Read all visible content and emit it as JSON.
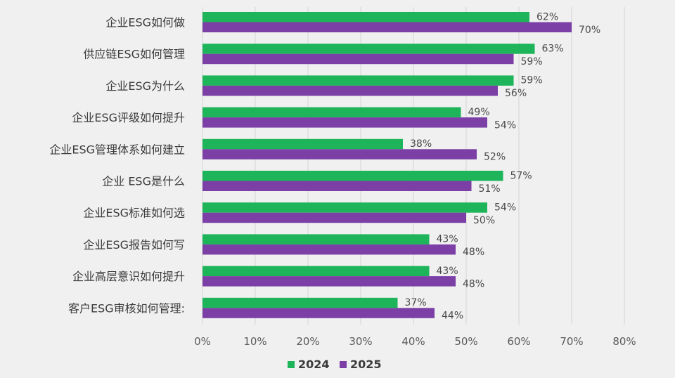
{
  "chart_data": {
    "type": "bar",
    "orientation": "horizontal",
    "categories": [
      "企业ESG如何做",
      "供应链ESG如何管理",
      "企业ESG为什么",
      "企业ESG评级如何提升",
      "企业ESG管理体系如何建立",
      "企业 ESG是什么",
      "企业ESG标准如何选",
      "企业ESG报告如何写",
      "企业高层意识如何提升",
      "客户ESG审核如何管理:"
    ],
    "series": [
      {
        "name": "2024",
        "color": "#1db45a",
        "values": [
          62,
          63,
          59,
          49,
          38,
          57,
          54,
          43,
          43,
          37
        ],
        "labels": [
          "62%",
          "63%",
          "59%",
          "49%",
          "38%",
          "57%",
          "54%",
          "43%",
          "43%",
          "37%"
        ]
      },
      {
        "name": "2025",
        "color": "#7b3fa6",
        "values": [
          70,
          59,
          56,
          54,
          52,
          51,
          50,
          48,
          48,
          44
        ],
        "labels": [
          "70%",
          "59%",
          "56%",
          "54%",
          "52%",
          "51%",
          "50%",
          "48%",
          "48%",
          "44%"
        ]
      }
    ],
    "xlim": [
      0,
      80
    ],
    "xticks": [
      0,
      10,
      20,
      30,
      40,
      50,
      60,
      70,
      80
    ],
    "xtick_labels": [
      "0%",
      "10%",
      "20%",
      "30%",
      "40%",
      "50%",
      "60%",
      "70%",
      "80%"
    ],
    "grid": true,
    "legend_position": "bottom-center",
    "title": "",
    "xlabel": "",
    "ylabel": ""
  }
}
